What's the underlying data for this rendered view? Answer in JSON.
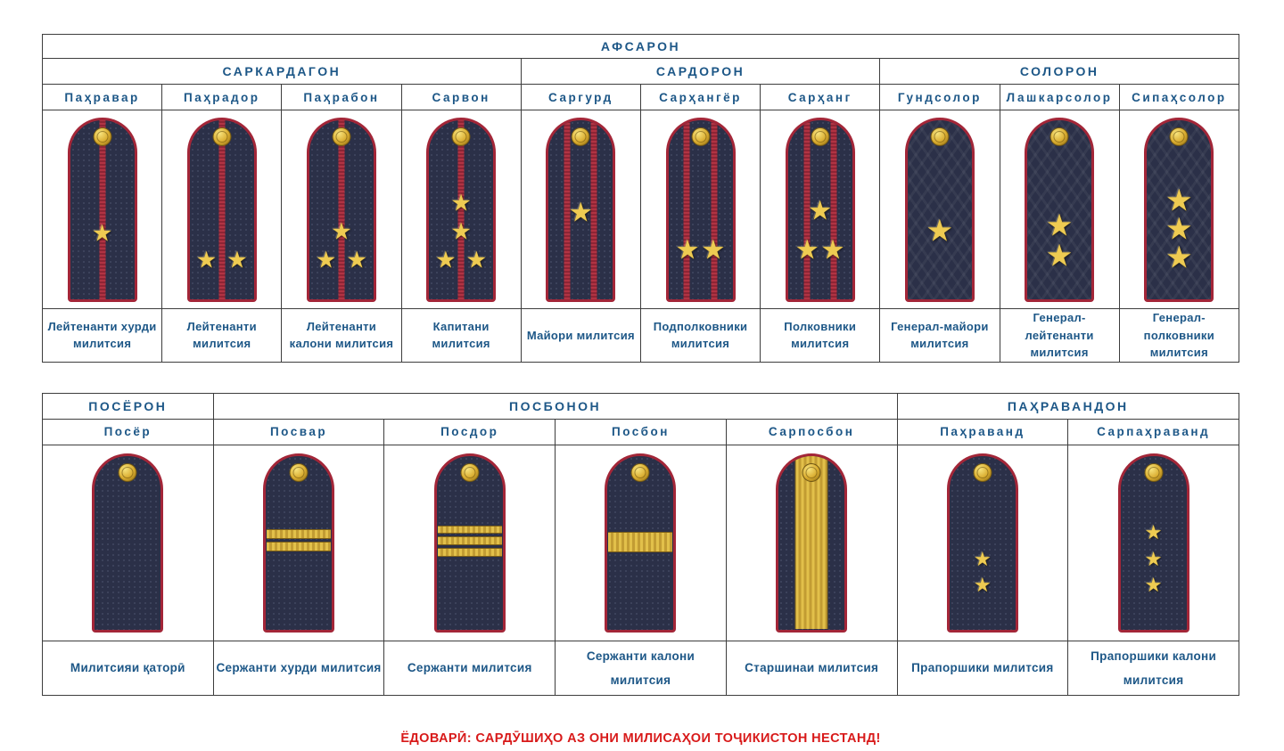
{
  "icons": {
    "star_icon": "★"
  },
  "colors": {
    "board_navy": "#2b3048",
    "piping_red": "#a32638",
    "stripe_red": "#b13343",
    "gold": "#e2c04a",
    "star_gold": "#eecb52",
    "header_blue": "#1d5787",
    "note_red": "#d81a1a",
    "border_gray": "#3d3d3d"
  },
  "officers_table": {
    "title": "АФСАРОН",
    "groups": [
      {
        "label": "САРКАРДАГОН",
        "span": 4
      },
      {
        "label": "САРДОРОН",
        "span": 3
      },
      {
        "label": "СОЛОРОН",
        "span": 3
      }
    ],
    "ranks": [
      {
        "name": "Паҳравар",
        "label": "Лейтенанти хурди милитсия",
        "board": {
          "texture": "weave",
          "stripes": 1,
          "stars": [
            [
              50,
              64,
              26
            ]
          ]
        }
      },
      {
        "name": "Паҳрадор",
        "label": "Лейтенанти милитсия",
        "board": {
          "texture": "weave",
          "stripes": 1,
          "stars": [
            [
              26,
              79,
              26
            ],
            [
              74,
              79,
              26
            ]
          ]
        }
      },
      {
        "name": "Паҳрабон",
        "label": "Лейтенанти калони милитсия",
        "board": {
          "texture": "weave",
          "stripes": 1,
          "stars": [
            [
              50,
              63,
              26
            ],
            [
              26,
              79,
              26
            ],
            [
              74,
              79,
              26
            ]
          ]
        }
      },
      {
        "name": "Сарвон",
        "label": "Капитани милитсия",
        "board": {
          "texture": "weave",
          "stripes": 1,
          "stars": [
            [
              50,
              47,
              26
            ],
            [
              50,
              63,
              26
            ],
            [
              26,
              79,
              26
            ],
            [
              74,
              79,
              26
            ]
          ]
        }
      },
      {
        "name": "Саргурд",
        "label": "Майори милитсия",
        "board": {
          "texture": "weave",
          "stripes": 2,
          "stars": [
            [
              50,
              53,
              30
            ]
          ]
        }
      },
      {
        "name": "Сарҳангёр",
        "label": "Подполковники милитсия",
        "board": {
          "texture": "weave",
          "stripes": 2,
          "stars": [
            [
              30,
              74,
              30
            ],
            [
              70,
              74,
              30
            ]
          ]
        }
      },
      {
        "name": "Сарҳанг",
        "label": "Полковники милитсия",
        "board": {
          "texture": "weave",
          "stripes": 2,
          "stars": [
            [
              50,
              52,
              30
            ],
            [
              30,
              74,
              30
            ],
            [
              70,
              74,
              30
            ]
          ]
        }
      },
      {
        "name": "Гундсолор",
        "label": "Генерал-майори милитсия",
        "board": {
          "texture": "zigzag",
          "stripes": 0,
          "stars": [
            [
              50,
              63,
              34
            ]
          ]
        }
      },
      {
        "name": "Лашкарсолор",
        "label": "Генерал-лейтенанти милитсия",
        "board": {
          "texture": "zigzag",
          "stripes": 0,
          "stars": [
            [
              50,
              60,
              34
            ],
            [
              50,
              77,
              34
            ]
          ]
        }
      },
      {
        "name": "Сипаҳсолор",
        "label": "Генерал-полковники милитсия",
        "board": {
          "texture": "zigzag",
          "stripes": 0,
          "stars": [
            [
              50,
              46,
              34
            ],
            [
              50,
              62,
              34
            ],
            [
              50,
              78,
              34
            ]
          ]
        }
      }
    ]
  },
  "enlisted_table": {
    "groups": [
      {
        "label": "ПОСЁРОН",
        "span": 1
      },
      {
        "label": "ПОСБОНОН",
        "span": 4
      },
      {
        "label": "ПАҲРАВАНДОН",
        "span": 2
      }
    ],
    "ranks": [
      {
        "name": "Посёр",
        "label": "Милитсияи қаторӣ",
        "board": {
          "texture": "weave"
        }
      },
      {
        "name": "Посвар",
        "label": "Сержанти хурди милитсия",
        "board": {
          "texture": "weave",
          "hbands": 2
        }
      },
      {
        "name": "Посдор",
        "label": "Сержанти милитсия",
        "board": {
          "texture": "weave",
          "hbands": 3
        }
      },
      {
        "name": "Посбон",
        "label": "Сержанти калони милитсия",
        "board": {
          "texture": "weave",
          "hbands": 1
        }
      },
      {
        "name": "Сарпосбон",
        "label": "Старшинаи милитсия",
        "board": {
          "texture": "weave",
          "vband": true
        }
      },
      {
        "name": "Паҳраванд",
        "label": "Прапоршики милитсия",
        "board": {
          "texture": "weave",
          "stars": [
            [
              50,
              60,
              22
            ],
            [
              50,
              75,
              22
            ]
          ]
        }
      },
      {
        "name": "Сарпаҳраванд",
        "label": "Прапоршики калони милитсия",
        "board": {
          "texture": "weave",
          "stars": [
            [
              50,
              45,
              22
            ],
            [
              50,
              60,
              22
            ],
            [
              50,
              75,
              22
            ]
          ]
        }
      }
    ]
  },
  "footnote": {
    "text": "ЁДОВАРӢ: САРДӮШИҲО АЗ ОНИ МИЛИСАҲОИ ТОҶИКИСТОН НЕСТАНД!"
  }
}
